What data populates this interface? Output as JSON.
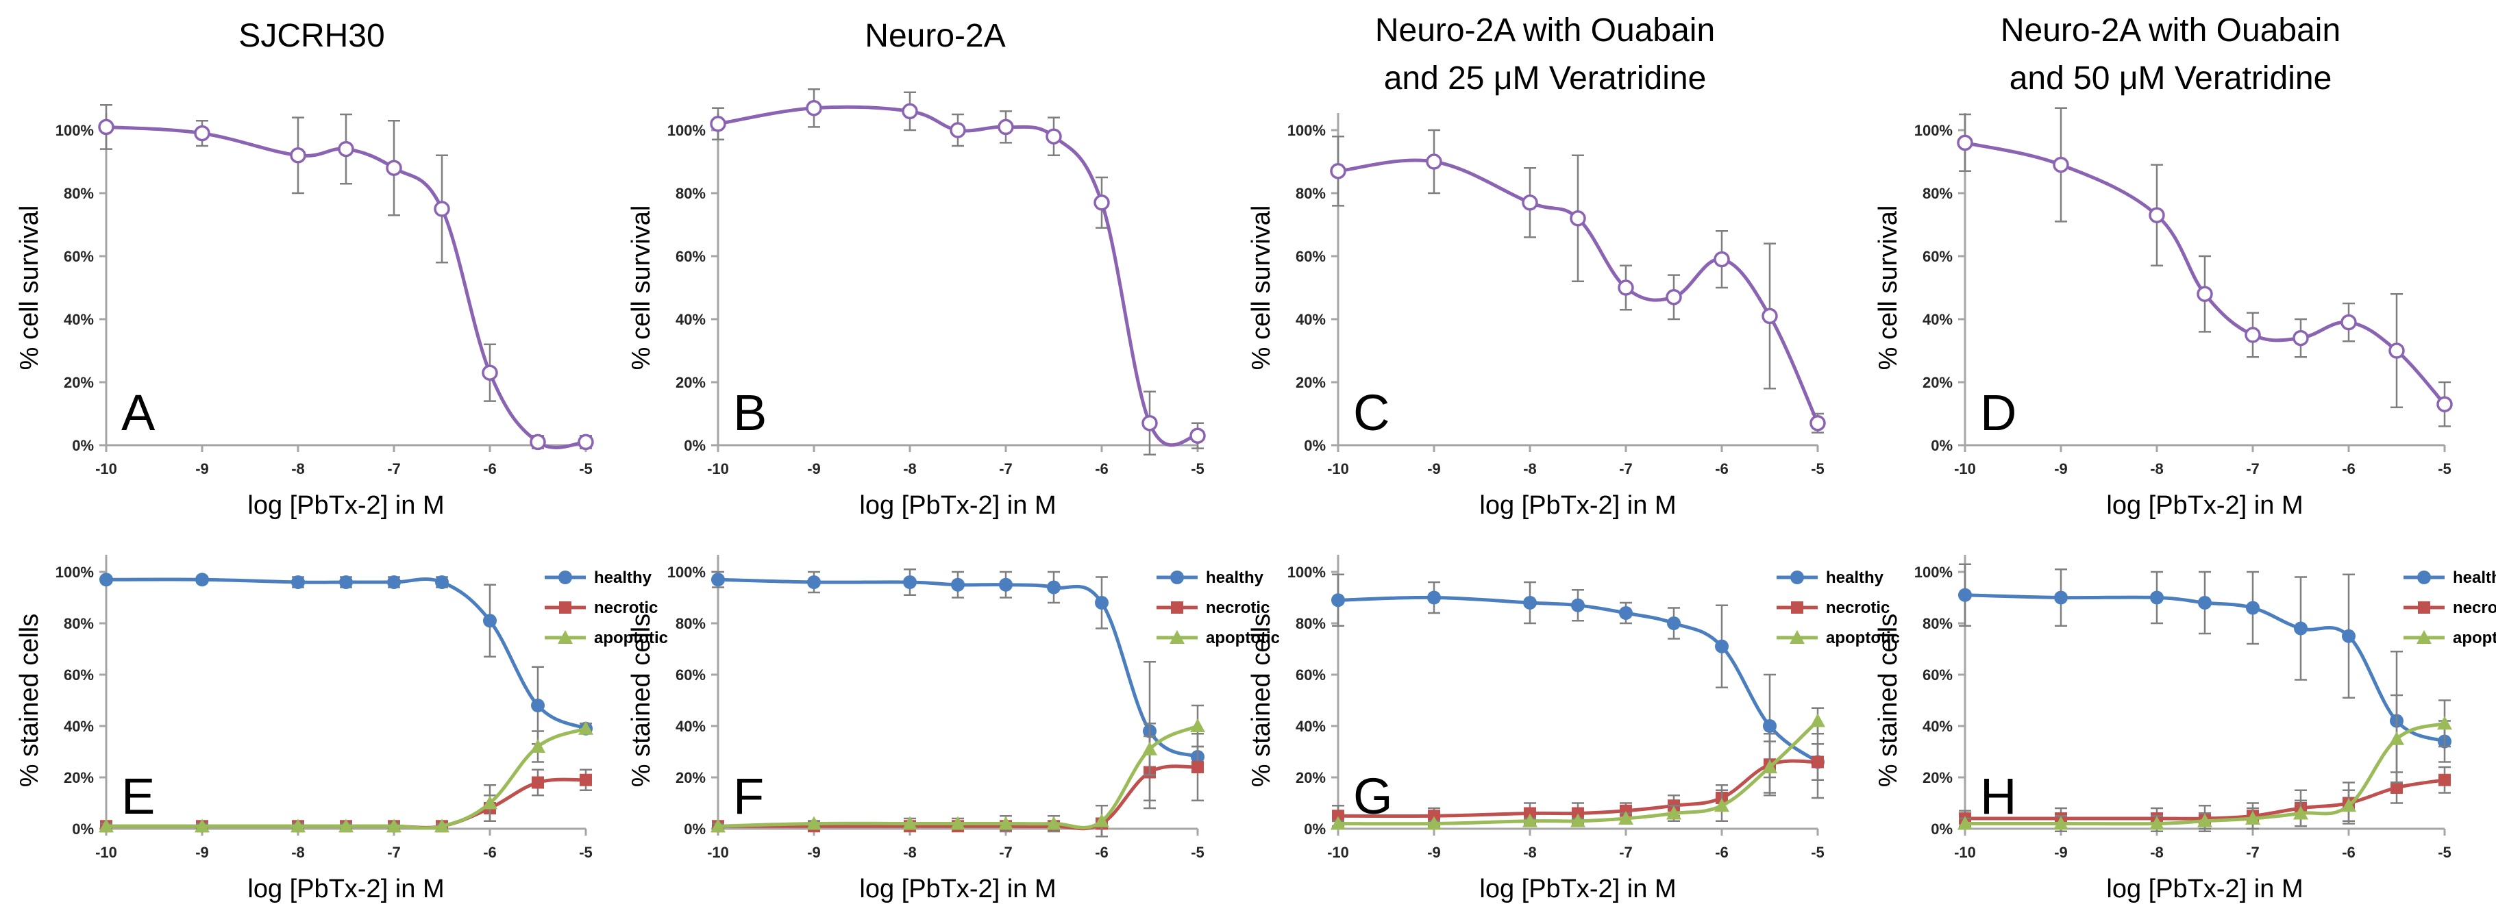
{
  "columns": [
    {
      "title_lines": [
        "SJCRH30"
      ]
    },
    {
      "title_lines": [
        "Neuro-2A"
      ]
    },
    {
      "title_lines": [
        "Neuro-2A with Ouabain",
        "and 25 μM Veratridine"
      ]
    },
    {
      "title_lines": [
        "Neuro-2A with Ouabain",
        "and 50 μM Veratridine"
      ]
    }
  ],
  "colors": {
    "survival": "#8b63b3",
    "healthy": "#4a7ebf",
    "necrotic": "#c0504d",
    "apoptotic": "#9bbb59",
    "axis": "#a6a6a6",
    "error": "#7f7f7f"
  },
  "chart_data": [
    {
      "panel": "A",
      "type": "line",
      "title": "SJCRH30",
      "xlabel": "log [PbTx-2] in M",
      "ylabel": "% cell survival",
      "xlim": [
        -10,
        -5
      ],
      "ylim": [
        0,
        100
      ],
      "xticks": [
        "-10",
        "-9",
        "-8",
        "-7",
        "-6",
        "-5"
      ],
      "yticks": [
        "0%",
        "20%",
        "40%",
        "60%",
        "80%",
        "100%"
      ],
      "x": [
        -10,
        -9,
        -8,
        -7.5,
        -7,
        -6.5,
        -6,
        -5.5,
        -5
      ],
      "series": [
        {
          "name": "survival",
          "values": [
            101,
            99,
            92,
            94,
            88,
            75,
            23,
            1,
            1
          ],
          "err": [
            7,
            4,
            12,
            11,
            15,
            17,
            9,
            2,
            2
          ]
        }
      ]
    },
    {
      "panel": "B",
      "type": "line",
      "title": "Neuro-2A",
      "xlabel": "log [PbTx-2] in M",
      "ylabel": "% cell survival",
      "xlim": [
        -10,
        -5
      ],
      "ylim": [
        0,
        100
      ],
      "xticks": [
        "-10",
        "-9",
        "-8",
        "-7",
        "-6",
        "-5"
      ],
      "yticks": [
        "0%",
        "20%",
        "40%",
        "60%",
        "80%",
        "100%"
      ],
      "x": [
        -10,
        -9,
        -8,
        -7.5,
        -7,
        -6.5,
        -6,
        -5.5,
        -5
      ],
      "series": [
        {
          "name": "survival",
          "values": [
            102,
            107,
            106,
            100,
            101,
            98,
            77,
            7,
            3
          ],
          "err": [
            5,
            6,
            6,
            5,
            5,
            6,
            8,
            10,
            4
          ]
        }
      ]
    },
    {
      "panel": "C",
      "type": "line",
      "title": "Neuro-2A with Ouabain and 25 μM Veratridine",
      "xlabel": "log [PbTx-2] in M",
      "ylabel": "% cell survival",
      "xlim": [
        -10,
        -5
      ],
      "ylim": [
        0,
        100
      ],
      "xticks": [
        "-10",
        "-9",
        "-8",
        "-7",
        "-6",
        "-5"
      ],
      "yticks": [
        "0%",
        "20%",
        "40%",
        "60%",
        "80%",
        "100%"
      ],
      "x": [
        -10,
        -9,
        -8,
        -7.5,
        -7,
        -6.5,
        -6,
        -5.5,
        -5
      ],
      "series": [
        {
          "name": "survival",
          "values": [
            87,
            90,
            77,
            72,
            50,
            47,
            59,
            41,
            7
          ],
          "err": [
            11,
            10,
            11,
            20,
            7,
            7,
            9,
            23,
            3
          ]
        }
      ]
    },
    {
      "panel": "D",
      "type": "line",
      "title": "Neuro-2A with Ouabain and 50 μM Veratridine",
      "xlabel": "log [PbTx-2] in M",
      "ylabel": "% cell survival",
      "xlim": [
        -10,
        -5
      ],
      "ylim": [
        0,
        100
      ],
      "xticks": [
        "-10",
        "-9",
        "-8",
        "-7",
        "-6",
        "-5"
      ],
      "yticks": [
        "0%",
        "20%",
        "40%",
        "60%",
        "80%",
        "100%"
      ],
      "x": [
        -10,
        -9,
        -8,
        -7.5,
        -7,
        -6.5,
        -6,
        -5.5,
        -5
      ],
      "series": [
        {
          "name": "survival",
          "values": [
            96,
            89,
            73,
            48,
            35,
            34,
            39,
            30,
            13
          ],
          "err": [
            9,
            18,
            16,
            12,
            7,
            6,
            6,
            18,
            7
          ]
        }
      ]
    },
    {
      "panel": "E",
      "type": "line",
      "xlabel": "log [PbTx-2] in M",
      "ylabel": "% stained cells",
      "xlim": [
        -10,
        -5
      ],
      "ylim": [
        0,
        100
      ],
      "xticks": [
        "-10",
        "-9",
        "-8",
        "-7",
        "-6",
        "-5"
      ],
      "yticks": [
        "0%",
        "20%",
        "40%",
        "60%",
        "80%",
        "100%"
      ],
      "legend": "top-right",
      "x": [
        -10,
        -9,
        -8,
        -7.5,
        -7,
        -6.5,
        -6,
        -5.5,
        -5
      ],
      "series": [
        {
          "name": "healthy",
          "values": [
            97,
            97,
            96,
            96,
            96,
            96,
            81,
            48,
            39
          ],
          "err": [
            1,
            1,
            2,
            2,
            2,
            2,
            14,
            15,
            2
          ]
        },
        {
          "name": "necrotic",
          "values": [
            1,
            1,
            1,
            1,
            1,
            1,
            8,
            18,
            19
          ],
          "err": [
            1,
            1,
            1,
            1,
            1,
            1,
            5,
            5,
            4
          ]
        },
        {
          "name": "apoptotic",
          "values": [
            1,
            1,
            1,
            1,
            1,
            1,
            10,
            32,
            39
          ],
          "err": [
            1,
            1,
            1,
            1,
            1,
            1,
            7,
            6,
            2
          ]
        }
      ]
    },
    {
      "panel": "F",
      "type": "line",
      "xlabel": "log [PbTx-2] in M",
      "ylabel": "% stained cells",
      "xlim": [
        -10,
        -5
      ],
      "ylim": [
        0,
        100
      ],
      "xticks": [
        "-10",
        "-9",
        "-8",
        "-7",
        "-6",
        "-5"
      ],
      "yticks": [
        "0%",
        "20%",
        "40%",
        "60%",
        "80%",
        "100%"
      ],
      "legend": "top-right",
      "x": [
        -10,
        -9,
        -8,
        -7.5,
        -7,
        -6.5,
        -6,
        -5.5,
        -5
      ],
      "series": [
        {
          "name": "healthy",
          "values": [
            97,
            96,
            96,
            95,
            95,
            94,
            88,
            38,
            28
          ],
          "err": [
            3,
            4,
            5,
            5,
            5,
            6,
            10,
            27,
            4
          ]
        },
        {
          "name": "necrotic",
          "values": [
            1,
            1,
            1,
            1,
            1,
            1,
            2,
            22,
            24
          ],
          "err": [
            1,
            1,
            1,
            1,
            1,
            1,
            2,
            14,
            13
          ]
        },
        {
          "name": "apoptotic",
          "values": [
            1,
            2,
            2,
            2,
            2,
            2,
            3,
            31,
            40
          ],
          "err": [
            1,
            1,
            2,
            2,
            3,
            3,
            6,
            10,
            8
          ]
        }
      ]
    },
    {
      "panel": "G",
      "type": "line",
      "xlabel": "log [PbTx-2] in M",
      "ylabel": "% stained cells",
      "xlim": [
        -10,
        -5
      ],
      "ylim": [
        0,
        100
      ],
      "xticks": [
        "-10",
        "-9",
        "-8",
        "-7",
        "-6",
        "-5"
      ],
      "yticks": [
        "0%",
        "20%",
        "40%",
        "60%",
        "80%",
        "100%"
      ],
      "legend": "top-right",
      "x": [
        -10,
        -9,
        -8,
        -7.5,
        -7,
        -6.5,
        -6,
        -5.5,
        -5
      ],
      "series": [
        {
          "name": "healthy",
          "values": [
            89,
            90,
            88,
            87,
            84,
            80,
            71,
            40,
            26
          ],
          "err": [
            10,
            6,
            8,
            6,
            4,
            6,
            16,
            20,
            7
          ]
        },
        {
          "name": "necrotic",
          "values": [
            5,
            5,
            6,
            6,
            7,
            9,
            12,
            25,
            26
          ],
          "err": [
            4,
            3,
            4,
            4,
            3,
            4,
            5,
            12,
            14
          ]
        },
        {
          "name": "apoptotic",
          "values": [
            2,
            2,
            3,
            3,
            4,
            6,
            9,
            24,
            42
          ],
          "err": [
            1,
            1,
            1,
            1,
            2,
            3,
            6,
            10,
            5
          ]
        }
      ]
    },
    {
      "panel": "H",
      "type": "line",
      "xlabel": "log [PbTx-2] in M",
      "ylabel": "% stained cells",
      "xlim": [
        -10,
        -5
      ],
      "ylim": [
        0,
        100
      ],
      "xticks": [
        "-10",
        "-9",
        "-8",
        "-7",
        "-6",
        "-5"
      ],
      "yticks": [
        "0%",
        "20%",
        "40%",
        "60%",
        "80%",
        "100%"
      ],
      "legend": "top-right",
      "x": [
        -10,
        -9,
        -8,
        -7.5,
        -7,
        -6.5,
        -6,
        -5.5,
        -5
      ],
      "series": [
        {
          "name": "healthy",
          "values": [
            91,
            90,
            90,
            88,
            86,
            78,
            75,
            42,
            34
          ],
          "err": [
            12,
            11,
            10,
            12,
            14,
            20,
            24,
            27,
            8
          ]
        },
        {
          "name": "necrotic",
          "values": [
            4,
            4,
            4,
            4,
            5,
            8,
            10,
            16,
            19
          ],
          "err": [
            3,
            4,
            4,
            5,
            5,
            7,
            8,
            6,
            5
          ]
        },
        {
          "name": "apoptotic",
          "values": [
            2,
            2,
            2,
            3,
            4,
            6,
            9,
            35,
            41
          ],
          "err": [
            2,
            3,
            3,
            3,
            4,
            5,
            6,
            17,
            9
          ]
        }
      ]
    }
  ]
}
